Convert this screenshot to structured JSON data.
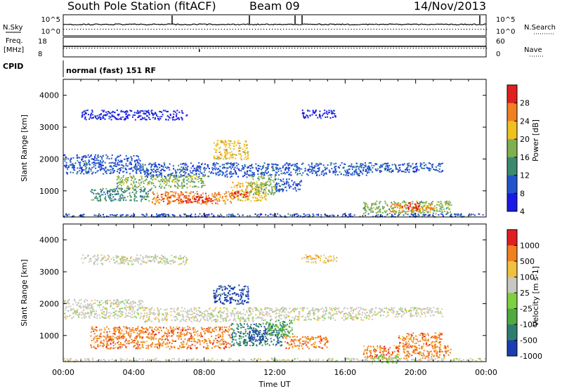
{
  "header": {
    "station": "South Pole Station (fitACF)",
    "beam": "Beam 09",
    "date": "14/Nov/2013"
  },
  "status_panels": {
    "nsky_label": "N.Sky",
    "nsky_ticks": [
      "10^5",
      "10^0"
    ],
    "nsearch_label": "N.Search",
    "nsearch_ticks": [
      "10^5",
      "10^0"
    ],
    "freq_label_1": "Freq.",
    "freq_label_2": "[MHz]",
    "freq_ticks": [
      "18",
      "8"
    ],
    "nave_label": "Nave",
    "nave_ticks": [
      "60",
      "0"
    ],
    "cpid_label": "CPID",
    "cpid_value": "normal (fast) 151 RF"
  },
  "chart_data": [
    {
      "type": "heatmap",
      "panel": "power",
      "ylabel": "Slant Range [km]",
      "xlabel": "Time UT",
      "x_ticks": [
        "00:00",
        "04:00",
        "08:00",
        "12:00",
        "16:00",
        "20:00",
        "00:00"
      ],
      "x_hours": [
        0,
        4,
        8,
        12,
        16,
        20,
        24
      ],
      "xlim": [
        0,
        24
      ],
      "y_ticks": [
        1000,
        2000,
        3000,
        4000
      ],
      "ylim": [
        180,
        4500
      ],
      "colorbar_label": "Power [dB]",
      "colorbar_ticks": [
        "28",
        "24",
        "20",
        "16",
        "12",
        "8",
        "4"
      ],
      "colorbar_levels": [
        4,
        8,
        12,
        16,
        20,
        24,
        28
      ],
      "palette": [
        "#1a1ae6",
        "#2255cc",
        "#3a8a72",
        "#7fb050",
        "#f0c020",
        "#f08020",
        "#e02020"
      ],
      "regions": [
        {
          "t": [
            0.0,
            4.5
          ],
          "r": [
            1550,
            2150
          ],
          "level": 1
        },
        {
          "t": [
            4.5,
            11.0
          ],
          "r": [
            1450,
            1900
          ],
          "level": 1
        },
        {
          "t": [
            11.0,
            17.5
          ],
          "r": [
            1500,
            1900
          ],
          "level": 1
        },
        {
          "t": [
            17.5,
            21.5
          ],
          "r": [
            1600,
            1900
          ],
          "level": 1
        },
        {
          "t": [
            1.0,
            7.0
          ],
          "r": [
            3250,
            3550
          ],
          "level": 0
        },
        {
          "t": [
            13.5,
            15.5
          ],
          "r": [
            3300,
            3550
          ],
          "level": 0
        },
        {
          "t": [
            3.0,
            8.0
          ],
          "r": [
            1100,
            1500
          ],
          "level": 3
        },
        {
          "t": [
            8.5,
            10.5
          ],
          "r": [
            2000,
            2600
          ],
          "level": 4
        },
        {
          "t": [
            1.5,
            5.0
          ],
          "r": [
            700,
            1100
          ],
          "level": 2
        },
        {
          "t": [
            5.0,
            9.5
          ],
          "r": [
            600,
            1000
          ],
          "level": 5
        },
        {
          "t": [
            9.5,
            11.5
          ],
          "r": [
            700,
            1300
          ],
          "level": 4
        },
        {
          "t": [
            10.5,
            12.0
          ],
          "r": [
            900,
            1500
          ],
          "level": 3
        },
        {
          "t": [
            12.0,
            13.5
          ],
          "r": [
            1000,
            1400
          ],
          "level": 1
        },
        {
          "t": [
            17.0,
            22.0
          ],
          "r": [
            300,
            700
          ],
          "level": 3
        },
        {
          "t": [
            18.5,
            21.0
          ],
          "r": [
            350,
            600
          ],
          "level": 5
        },
        {
          "t": [
            19.5,
            20.2
          ],
          "r": [
            400,
            650
          ],
          "level": 6
        },
        {
          "t": [
            6.5,
            8.5
          ],
          "r": [
            650,
            850
          ],
          "level": 6
        },
        {
          "t": [
            9.5,
            10.5
          ],
          "r": [
            800,
            1000
          ],
          "level": 6
        },
        {
          "t": [
            0.0,
            24.0
          ],
          "r": [
            200,
            300
          ],
          "level": 1
        }
      ]
    },
    {
      "type": "heatmap",
      "panel": "velocity",
      "ylabel": "Slant Range [km]",
      "xlabel": "Time UT",
      "x_ticks": [
        "00:00",
        "04:00",
        "08:00",
        "12:00",
        "16:00",
        "20:00",
        "00:00"
      ],
      "x_hours": [
        0,
        4,
        8,
        12,
        16,
        20,
        24
      ],
      "xlim": [
        0,
        24
      ],
      "y_ticks": [
        1000,
        2000,
        3000,
        4000
      ],
      "ylim": [
        180,
        4500
      ],
      "colorbar_label": "Velocity [m s-1]",
      "colorbar_ticks": [
        "1000",
        "500",
        "100",
        "25",
        "-25",
        "-100",
        "-500",
        "-1000"
      ],
      "colorbar_levels": [
        1000,
        500,
        100,
        25,
        -25,
        -100,
        -500,
        -1000
      ],
      "palette": [
        "#1a3eb0",
        "#2e7e70",
        "#4faa40",
        "#7fd040",
        "#c8c8c0",
        "#f0c040",
        "#f08020",
        "#e02020"
      ],
      "regions": [
        {
          "t": [
            0.0,
            4.5
          ],
          "r": [
            1550,
            2150
          ],
          "level": 4
        },
        {
          "t": [
            4.5,
            11.0
          ],
          "r": [
            1450,
            1900
          ],
          "level": 4
        },
        {
          "t": [
            11.0,
            17.5
          ],
          "r": [
            1500,
            1900
          ],
          "level": 4
        },
        {
          "t": [
            17.5,
            21.5
          ],
          "r": [
            1600,
            1900
          ],
          "level": 4
        },
        {
          "t": [
            1.0,
            7.0
          ],
          "r": [
            3250,
            3550
          ],
          "level": 4
        },
        {
          "t": [
            13.5,
            15.5
          ],
          "r": [
            3300,
            3550
          ],
          "level": 5
        },
        {
          "t": [
            1.5,
            9.5
          ],
          "r": [
            600,
            1300
          ],
          "level": 6
        },
        {
          "t": [
            8.5,
            10.5
          ],
          "r": [
            2000,
            2600
          ],
          "level": 0
        },
        {
          "t": [
            9.5,
            12.5
          ],
          "r": [
            700,
            1400
          ],
          "level": 1
        },
        {
          "t": [
            10.5,
            11.5
          ],
          "r": [
            800,
            1200
          ],
          "level": 0
        },
        {
          "t": [
            11.5,
            13.0
          ],
          "r": [
            1000,
            1500
          ],
          "level": 2
        },
        {
          "t": [
            17.0,
            22.0
          ],
          "r": [
            300,
            700
          ],
          "level": 6
        },
        {
          "t": [
            17.5,
            19.0
          ],
          "r": [
            150,
            400
          ],
          "level": 3
        },
        {
          "t": [
            19.0,
            21.5
          ],
          "r": [
            650,
            1100
          ],
          "level": 6
        },
        {
          "t": [
            12.5,
            15.0
          ],
          "r": [
            600,
            1000
          ],
          "level": 6
        },
        {
          "t": [
            0.0,
            24.0
          ],
          "r": [
            200,
            300
          ],
          "level": 4
        }
      ]
    }
  ]
}
